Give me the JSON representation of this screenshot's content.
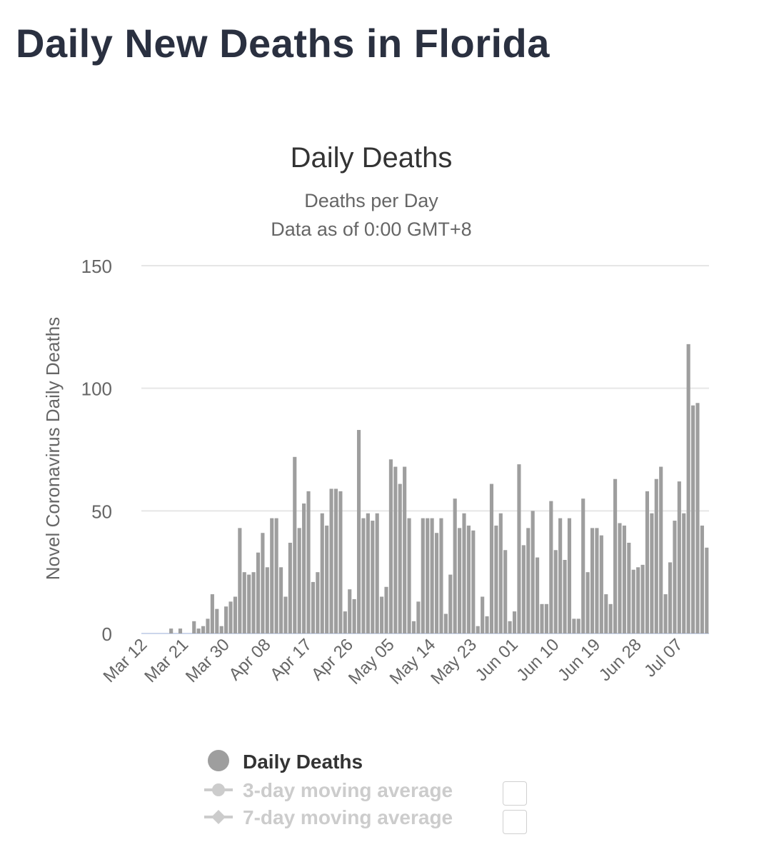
{
  "page": {
    "heading": "Daily New Deaths in Florida"
  },
  "colors": {
    "bar": "#9e9e9e",
    "grid": "#e6e6e6",
    "baseline": "#ccd6eb",
    "text": "#333333",
    "muted": "#666666",
    "legend_disabled": "#cccccc"
  },
  "chart_data": {
    "type": "bar",
    "title": "Daily Deaths",
    "subtitle_lines": [
      "Deaths per Day",
      "Data as of 0:00 GMT+8"
    ],
    "ylabel": "Novel Coronavirus Daily Deaths",
    "xlabel": "",
    "ylim": [
      0,
      150
    ],
    "yticks": [
      "0",
      "50",
      "100",
      "150"
    ],
    "xticks": [
      "Mar 12",
      "Mar 21",
      "Mar 30",
      "Apr 08",
      "Apr 17",
      "Apr 26",
      "May 05",
      "May 14",
      "May 23",
      "Jun 01",
      "Jun 10",
      "Jun 19",
      "Jun 28",
      "Jul 07"
    ],
    "x_start": "Mar 12",
    "x_end": "Jul 12",
    "grid": true,
    "legend_position": "bottom",
    "series": [
      {
        "name": "Daily Deaths",
        "values": [
          0,
          0,
          0,
          0,
          0,
          0,
          2,
          0,
          2,
          0,
          0,
          5,
          2,
          3,
          6,
          16,
          10,
          3,
          11,
          13,
          15,
          43,
          25,
          24,
          25,
          33,
          41,
          27,
          47,
          47,
          27,
          15,
          37,
          72,
          43,
          53,
          58,
          21,
          25,
          49,
          44,
          59,
          59,
          58,
          9,
          18,
          14,
          83,
          47,
          49,
          46,
          49,
          15,
          19,
          71,
          68,
          61,
          68,
          47,
          5,
          13,
          47,
          47,
          47,
          41,
          47,
          8,
          24,
          55,
          43,
          49,
          44,
          42,
          3,
          15,
          7,
          61,
          44,
          49,
          34,
          5,
          9,
          69,
          36,
          43,
          50,
          31,
          12,
          12,
          54,
          34,
          47,
          30,
          47,
          6,
          6,
          55,
          25,
          43,
          43,
          40,
          16,
          12,
          63,
          45,
          44,
          37,
          26,
          27,
          28,
          58,
          49,
          63,
          68,
          16,
          29,
          46,
          62,
          49,
          118,
          93,
          94,
          44,
          35
        ]
      },
      {
        "name": "3-day moving average",
        "values": []
      },
      {
        "name": "7-day moving average",
        "values": []
      }
    ]
  }
}
